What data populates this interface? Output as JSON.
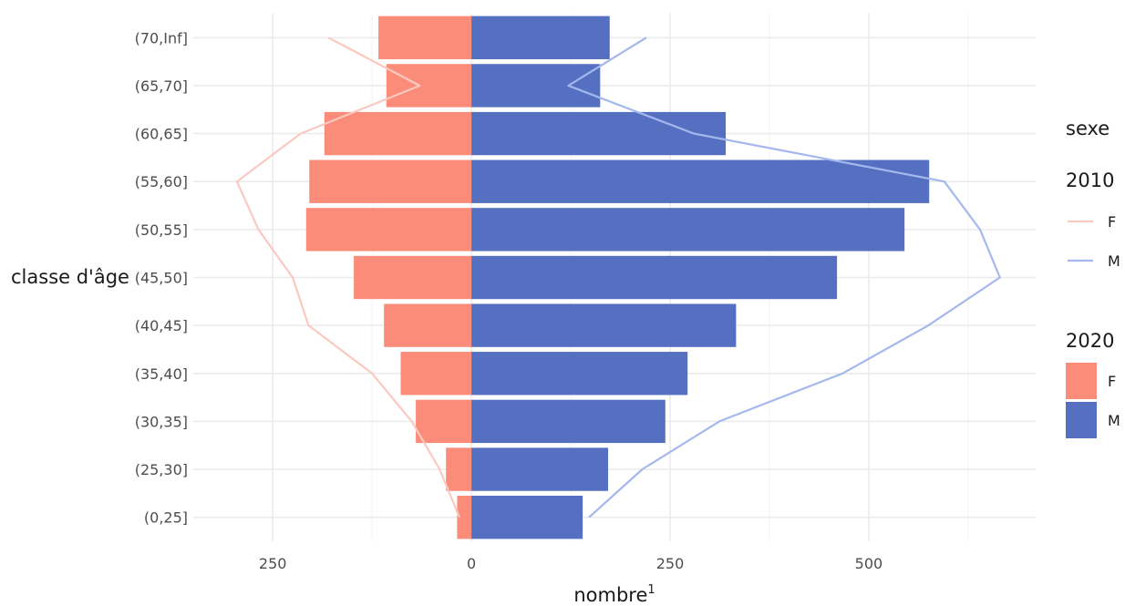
{
  "chart_data": {
    "type": "bar",
    "orientation": "horizontal",
    "ylabel": "classe d'âge",
    "xlabel": "nombre",
    "xlabel_superscript": "1",
    "categories": [
      "(0,25]",
      "(25,30]",
      "(30,35]",
      "(35,40]",
      "(40,45]",
      "(45,50]",
      "(50,55]",
      "(55,60]",
      "(60,65]",
      "(65,70]",
      "(70,Inf]"
    ],
    "xlim": [
      -350,
      710
    ],
    "x_ticks": [
      -250,
      0,
      250,
      500
    ],
    "x_tick_labels": [
      "250",
      "0",
      "250",
      "500"
    ],
    "grid": true,
    "legend_position": "right",
    "legend": {
      "title": "sexe",
      "groups": [
        {
          "title": "2010",
          "kind": "line",
          "items": [
            {
              "label": "F",
              "color": "#fbc9c0"
            },
            {
              "label": "M",
              "color": "#a4b8ee"
            }
          ]
        },
        {
          "title": "2020",
          "kind": "fill",
          "items": [
            {
              "label": "F",
              "color": "#fa8c79"
            },
            {
              "label": "M",
              "color": "#5570c0"
            }
          ]
        }
      ]
    },
    "bars_2020": [
      {
        "name": "F",
        "color": "#fa8c79",
        "values": [
          -18,
          -32,
          -70,
          -89,
          -110,
          -148,
          -208,
          -204,
          -185,
          -107,
          -117
        ]
      },
      {
        "name": "M",
        "color": "#5570c0",
        "values": [
          140,
          172,
          244,
          272,
          333,
          460,
          545,
          576,
          320,
          162,
          174
        ]
      }
    ],
    "lines_2010": [
      {
        "name": "F",
        "color": "#fbc9c0",
        "values": [
          -15,
          -40,
          -75,
          -125,
          -205,
          -225,
          -268,
          -295,
          -215,
          -65,
          -180
        ]
      },
      {
        "name": "M",
        "color": "#a4b8ee",
        "values": [
          148,
          215,
          312,
          467,
          575,
          665,
          640,
          595,
          280,
          122,
          220
        ]
      }
    ]
  }
}
